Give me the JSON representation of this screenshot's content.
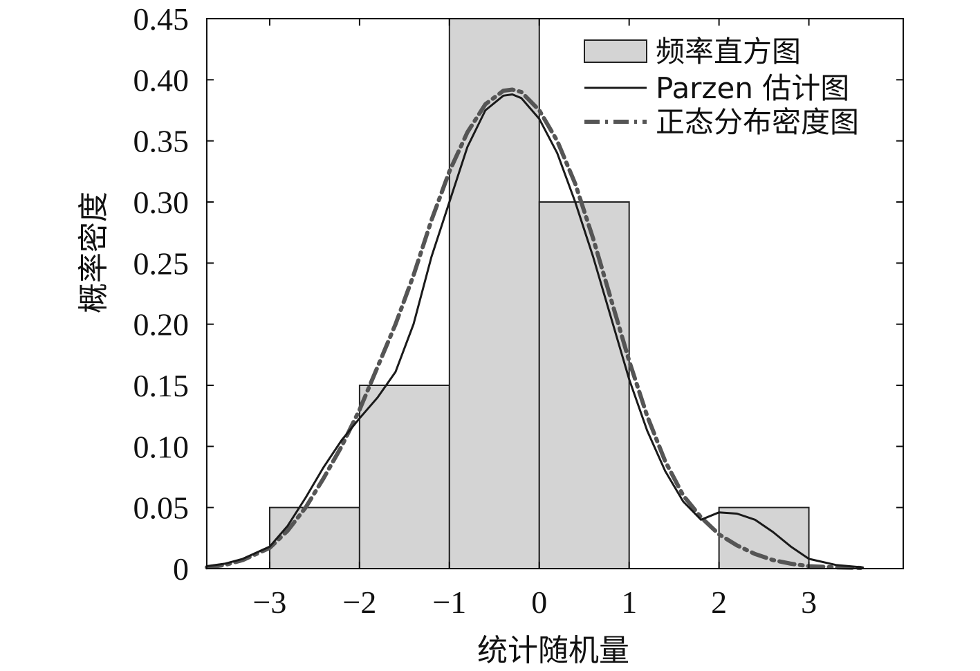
{
  "chart_data": {
    "type": "bar",
    "xlabel": "统计随机量",
    "ylabel": "概率密度",
    "xlim": [
      -3.7,
      4.05
    ],
    "ylim": [
      0,
      0.45
    ],
    "xticks": [
      -3,
      -2,
      -1,
      0,
      1,
      2,
      3
    ],
    "xtick_labels": [
      "−3",
      "−2",
      "−1",
      "0",
      "1",
      "2",
      "3"
    ],
    "yticks": [
      0,
      0.05,
      0.1,
      0.15,
      0.2,
      0.25,
      0.3,
      0.35,
      0.4,
      0.45
    ],
    "ytick_labels": [
      "0",
      "0.05",
      "0.10",
      "0.15",
      "0.20",
      "0.25",
      "0.30",
      "0.35",
      "0.40",
      "0.45"
    ],
    "legend_position": "top-right",
    "histogram": {
      "name": "频率直方图",
      "color": "#d4d4d4",
      "edge_color": "#222222",
      "bins": [
        {
          "x0": -3,
          "x1": -2,
          "value": 0.05
        },
        {
          "x0": -2,
          "x1": -1,
          "value": 0.15
        },
        {
          "x0": -1,
          "x1": 0,
          "value": 0.45
        },
        {
          "x0": 0,
          "x1": 1,
          "value": 0.3
        },
        {
          "x0": 1,
          "x1": 2,
          "value": 0
        },
        {
          "x0": 2,
          "x1": 3,
          "value": 0.05
        }
      ]
    },
    "series": [
      {
        "name": "Parzen 估计图",
        "style": "solid",
        "color": "#1a1a1a",
        "x": [
          -3.7,
          -3.5,
          -3.3,
          -3.0,
          -2.8,
          -2.6,
          -2.4,
          -2.2,
          -2.0,
          -1.8,
          -1.6,
          -1.4,
          -1.2,
          -1.0,
          -0.8,
          -0.6,
          -0.4,
          -0.3,
          -0.2,
          0.0,
          0.2,
          0.4,
          0.6,
          0.8,
          1.0,
          1.2,
          1.4,
          1.6,
          1.8,
          2.0,
          2.2,
          2.4,
          2.6,
          2.8,
          3.0,
          3.3,
          3.6
        ],
        "y": [
          0.002,
          0.004,
          0.008,
          0.018,
          0.035,
          0.058,
          0.083,
          0.105,
          0.123,
          0.14,
          0.161,
          0.2,
          0.255,
          0.3,
          0.345,
          0.375,
          0.387,
          0.388,
          0.385,
          0.368,
          0.34,
          0.3,
          0.255,
          0.205,
          0.155,
          0.113,
          0.08,
          0.055,
          0.04,
          0.046,
          0.045,
          0.04,
          0.03,
          0.018,
          0.008,
          0.003,
          0.001
        ]
      },
      {
        "name": "正态分布密度图",
        "style": "dashdot",
        "color": "#555555",
        "x": [
          -3.7,
          -3.5,
          -3.3,
          -3.0,
          -2.8,
          -2.6,
          -2.4,
          -2.2,
          -2.0,
          -1.8,
          -1.6,
          -1.4,
          -1.2,
          -1.0,
          -0.8,
          -0.6,
          -0.4,
          -0.3,
          -0.2,
          0.0,
          0.2,
          0.4,
          0.6,
          0.8,
          1.0,
          1.2,
          1.4,
          1.6,
          1.8,
          2.0,
          2.2,
          2.4,
          2.6,
          2.8,
          3.0,
          3.3,
          3.6
        ],
        "y": [
          0.001,
          0.003,
          0.007,
          0.017,
          0.031,
          0.05,
          0.074,
          0.1,
          0.13,
          0.165,
          0.2,
          0.24,
          0.285,
          0.325,
          0.357,
          0.38,
          0.391,
          0.392,
          0.39,
          0.375,
          0.35,
          0.315,
          0.27,
          0.22,
          0.17,
          0.125,
          0.088,
          0.06,
          0.042,
          0.028,
          0.019,
          0.012,
          0.007,
          0.004,
          0.002,
          0.001,
          0.0005
        ]
      }
    ]
  }
}
